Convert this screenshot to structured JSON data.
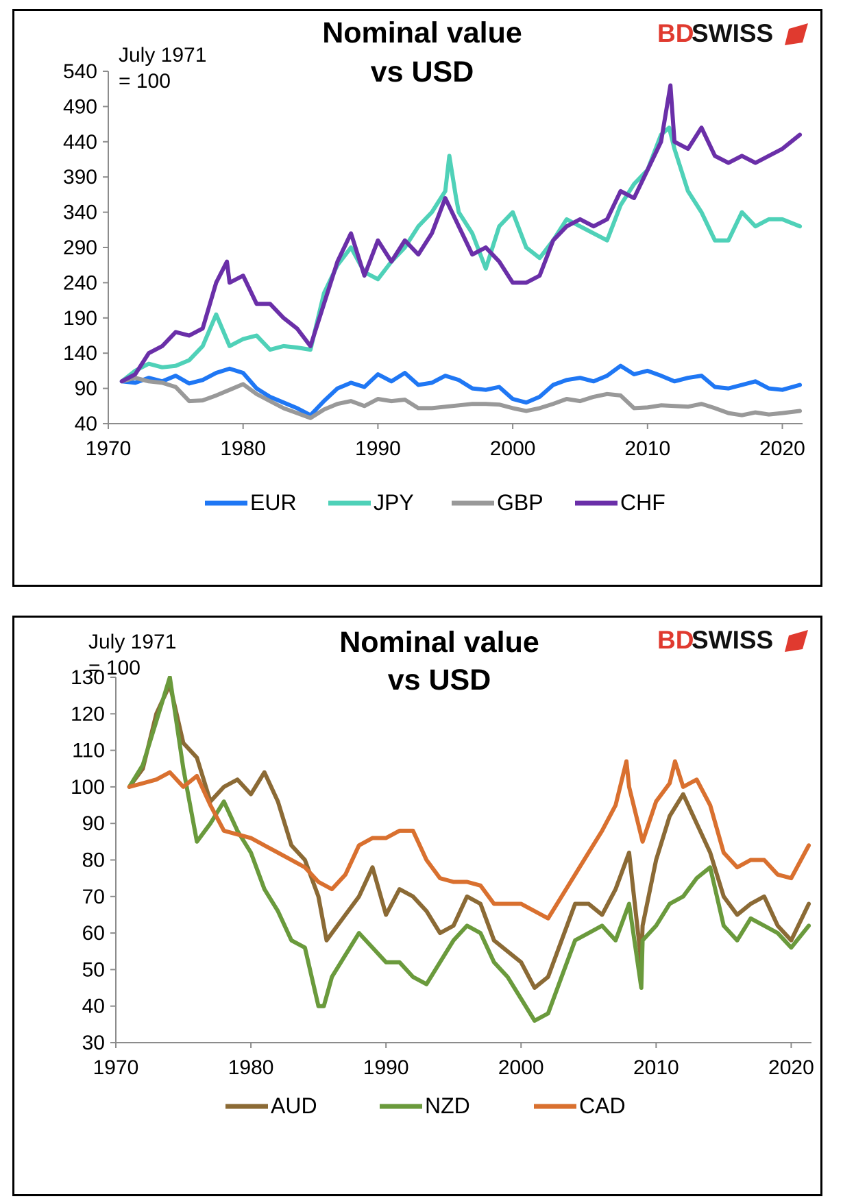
{
  "brand": {
    "part1": "BD",
    "part2": "SWISS"
  },
  "chart_data": [
    {
      "type": "line",
      "title": "Nominal value vs USD",
      "title_lines": [
        "Nominal value",
        "vs USD"
      ],
      "base_note_lines": [
        "July 1971",
        "= 100"
      ],
      "xlabel": "",
      "ylabel": "",
      "xlim": [
        1970,
        2021.5
      ],
      "ylim": [
        40,
        540
      ],
      "x_ticks": [
        1970,
        1980,
        1990,
        2000,
        2010,
        2020
      ],
      "y_ticks": [
        40,
        90,
        140,
        190,
        240,
        290,
        340,
        390,
        440,
        490,
        540
      ],
      "grid": false,
      "legend_position": "bottom",
      "series": [
        {
          "name": "EUR",
          "color": "#1f77f4",
          "x": [
            1971,
            1972,
            1973,
            1974,
            1975,
            1976,
            1977,
            1978,
            1979,
            1980,
            1981,
            1982,
            1983,
            1984,
            1985,
            1986,
            1987,
            1988,
            1989,
            1990,
            1991,
            1992,
            1993,
            1994,
            1995,
            1996,
            1997,
            1998,
            1999,
            2000,
            2001,
            2002,
            2003,
            2004,
            2005,
            2006,
            2007,
            2008,
            2009,
            2010,
            2011,
            2012,
            2013,
            2014,
            2015,
            2016,
            2017,
            2018,
            2019,
            2020,
            2021.3
          ],
          "y": [
            100,
            98,
            105,
            100,
            108,
            97,
            102,
            112,
            118,
            112,
            90,
            78,
            70,
            62,
            52,
            72,
            90,
            98,
            92,
            110,
            100,
            112,
            95,
            98,
            108,
            102,
            90,
            88,
            92,
            75,
            70,
            78,
            95,
            102,
            105,
            100,
            108,
            122,
            110,
            115,
            108,
            100,
            105,
            108,
            92,
            90,
            95,
            100,
            90,
            88,
            95
          ]
        },
        {
          "name": "JPY",
          "color": "#4fd1b8",
          "x": [
            1971,
            1972,
            1973,
            1974,
            1975,
            1976,
            1977,
            1978,
            1979,
            1980,
            1981,
            1982,
            1983,
            1984,
            1985,
            1986,
            1987,
            1988,
            1989,
            1990,
            1991,
            1992,
            1993,
            1994,
            1995,
            1995.3,
            1995.8,
            1996,
            1997,
            1998,
            1999,
            2000,
            2001,
            2002,
            2003,
            2004,
            2005,
            2006,
            2007,
            2008,
            2009,
            2010,
            2011,
            2011.6,
            2012,
            2013,
            2014,
            2015,
            2016,
            2017,
            2018,
            2019,
            2020,
            2021.3
          ],
          "y": [
            100,
            115,
            125,
            120,
            122,
            130,
            150,
            195,
            150,
            160,
            165,
            145,
            150,
            148,
            145,
            225,
            265,
            290,
            255,
            245,
            270,
            290,
            320,
            340,
            370,
            420,
            360,
            340,
            310,
            260,
            320,
            340,
            290,
            275,
            300,
            330,
            320,
            310,
            300,
            350,
            380,
            400,
            450,
            460,
            430,
            370,
            340,
            300,
            300,
            340,
            320,
            330,
            330,
            320
          ]
        },
        {
          "name": "GBP",
          "color": "#999999",
          "x": [
            1971,
            1972,
            1973,
            1974,
            1975,
            1976,
            1977,
            1978,
            1979,
            1980,
            1981,
            1982,
            1983,
            1984,
            1985,
            1986,
            1987,
            1988,
            1989,
            1990,
            1991,
            1992,
            1993,
            1994,
            1995,
            1996,
            1997,
            1998,
            1999,
            2000,
            2001,
            2002,
            2003,
            2004,
            2005,
            2006,
            2007,
            2008,
            2009,
            2010,
            2011,
            2012,
            2013,
            2014,
            2015,
            2016,
            2017,
            2018,
            2019,
            2020,
            2021.3
          ],
          "y": [
            100,
            105,
            100,
            98,
            92,
            72,
            73,
            80,
            88,
            96,
            82,
            72,
            62,
            55,
            48,
            60,
            68,
            72,
            65,
            75,
            72,
            74,
            62,
            62,
            64,
            66,
            68,
            68,
            67,
            62,
            58,
            62,
            68,
            75,
            72,
            78,
            82,
            80,
            62,
            63,
            66,
            65,
            64,
            68,
            62,
            55,
            52,
            56,
            53,
            55,
            58
          ]
        },
        {
          "name": "CHF",
          "color": "#6a2fa8",
          "x": [
            1971,
            1972,
            1973,
            1974,
            1975,
            1976,
            1977,
            1978,
            1978.8,
            1979,
            1980,
            1981,
            1982,
            1983,
            1984,
            1985,
            1986,
            1987,
            1988,
            1989,
            1990,
            1991,
            1992,
            1993,
            1994,
            1995,
            1996,
            1997,
            1998,
            1999,
            2000,
            2001,
            2002,
            2003,
            2004,
            2005,
            2006,
            2007,
            2008,
            2009,
            2010,
            2011,
            2011.7,
            2012,
            2013,
            2014,
            2015,
            2016,
            2017,
            2018,
            2019,
            2020,
            2021.3
          ],
          "y": [
            100,
            110,
            140,
            150,
            170,
            165,
            175,
            240,
            270,
            240,
            250,
            210,
            210,
            190,
            175,
            150,
            210,
            270,
            310,
            250,
            300,
            270,
            300,
            280,
            310,
            360,
            320,
            280,
            290,
            270,
            240,
            240,
            250,
            300,
            320,
            330,
            320,
            330,
            370,
            360,
            400,
            440,
            520,
            440,
            430,
            460,
            420,
            410,
            420,
            410,
            420,
            430,
            450
          ]
        }
      ]
    },
    {
      "type": "line",
      "title": "Nominal value vs USD",
      "title_lines": [
        "Nominal value",
        "vs USD"
      ],
      "base_note_lines": [
        "July 1971",
        "= 100"
      ],
      "xlabel": "",
      "ylabel": "",
      "xlim": [
        1970,
        2021.5
      ],
      "ylim": [
        30,
        130
      ],
      "x_ticks": [
        1970,
        1980,
        1990,
        2000,
        2010,
        2020
      ],
      "y_ticks": [
        30,
        40,
        50,
        60,
        70,
        80,
        90,
        100,
        110,
        120,
        130
      ],
      "grid": false,
      "legend_position": "bottom",
      "series": [
        {
          "name": "AUD",
          "color": "#8b6a35",
          "x": [
            1971,
            1972,
            1973,
            1974,
            1975,
            1976,
            1977,
            1978,
            1979,
            1980,
            1981,
            1982,
            1983,
            1984,
            1985,
            1985.6,
            1986,
            1987,
            1988,
            1989,
            1990,
            1991,
            1992,
            1993,
            1994,
            1995,
            1996,
            1997,
            1998,
            1999,
            2000,
            2001,
            2002,
            2003,
            2004,
            2005,
            2006,
            2007,
            2008,
            2008.9,
            2009,
            2010,
            2011,
            2012,
            2013,
            2014,
            2015,
            2016,
            2017,
            2018,
            2019,
            2020,
            2021.3
          ],
          "y": [
            100,
            105,
            120,
            128,
            112,
            108,
            96,
            100,
            102,
            98,
            104,
            96,
            84,
            80,
            70,
            58,
            60,
            65,
            70,
            78,
            65,
            72,
            70,
            66,
            60,
            62,
            70,
            68,
            58,
            55,
            52,
            45,
            48,
            58,
            68,
            68,
            65,
            72,
            82,
            52,
            62,
            80,
            92,
            98,
            90,
            82,
            70,
            65,
            68,
            70,
            62,
            58,
            68
          ]
        },
        {
          "name": "NZD",
          "color": "#6a9a3c",
          "x": [
            1971,
            1972,
            1973,
            1974,
            1975,
            1976,
            1977,
            1978,
            1979,
            1980,
            1981,
            1982,
            1983,
            1984,
            1985,
            1985.4,
            1986,
            1987,
            1988,
            1989,
            1990,
            1991,
            1992,
            1993,
            1994,
            1995,
            1996,
            1997,
            1998,
            1999,
            2000,
            2001,
            2002,
            2003,
            2004,
            2005,
            2006,
            2007,
            2008,
            2008.9,
            2009,
            2010,
            2011,
            2012,
            2013,
            2014,
            2015,
            2016,
            2017,
            2018,
            2019,
            2020,
            2021.3
          ],
          "y": [
            100,
            106,
            118,
            130,
            105,
            85,
            90,
            96,
            88,
            82,
            72,
            66,
            58,
            56,
            40,
            40,
            48,
            54,
            60,
            56,
            52,
            52,
            48,
            46,
            52,
            58,
            62,
            60,
            52,
            48,
            42,
            36,
            38,
            48,
            58,
            60,
            62,
            58,
            68,
            45,
            58,
            62,
            68,
            70,
            75,
            78,
            62,
            58,
            64,
            62,
            60,
            56,
            62
          ]
        },
        {
          "name": "CAD",
          "color": "#d9702f",
          "x": [
            1971,
            1972,
            1973,
            1974,
            1975,
            1976,
            1977,
            1978,
            1979,
            1980,
            1981,
            1982,
            1983,
            1984,
            1985,
            1986,
            1987,
            1988,
            1989,
            1990,
            1991,
            1992,
            1993,
            1994,
            1995,
            1996,
            1997,
            1998,
            1999,
            2000,
            2001,
            2002,
            2003,
            2004,
            2005,
            2006,
            2007,
            2007.8,
            2008,
            2009,
            2010,
            2011,
            2011.4,
            2012,
            2013,
            2014,
            2015,
            2016,
            2017,
            2018,
            2019,
            2020,
            2021.3
          ],
          "y": [
            100,
            101,
            102,
            104,
            100,
            103,
            95,
            88,
            87,
            86,
            84,
            82,
            80,
            78,
            74,
            72,
            76,
            84,
            86,
            86,
            88,
            88,
            80,
            75,
            74,
            74,
            73,
            68,
            68,
            68,
            66,
            64,
            70,
            76,
            82,
            88,
            95,
            107,
            100,
            85,
            96,
            101,
            107,
            100,
            102,
            95,
            82,
            78,
            80,
            80,
            76,
            75,
            84
          ]
        }
      ]
    }
  ]
}
